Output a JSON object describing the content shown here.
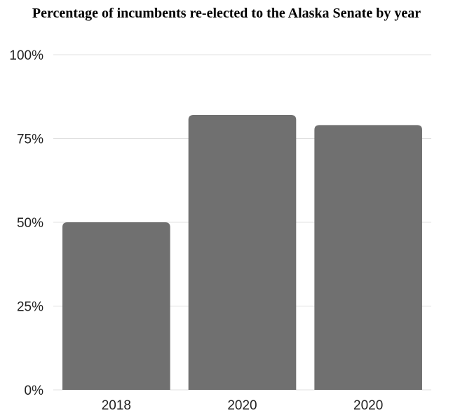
{
  "chart_data": {
    "type": "bar",
    "title": "Percentage of incumbents re-elected to the Alaska Senate by year",
    "categories": [
      "2018",
      "2020",
      "2020"
    ],
    "values": [
      50,
      82,
      79
    ],
    "ylim": [
      0,
      100
    ],
    "yticks": [
      0,
      25,
      50,
      75,
      100
    ],
    "ytick_labels": [
      "0%",
      "25%",
      "50%",
      "75%",
      "100%"
    ],
    "xlabel": "",
    "ylabel": "",
    "grid": true,
    "legend": "none",
    "bar_color": "#707070",
    "grid_color": "#e0e0e0"
  }
}
